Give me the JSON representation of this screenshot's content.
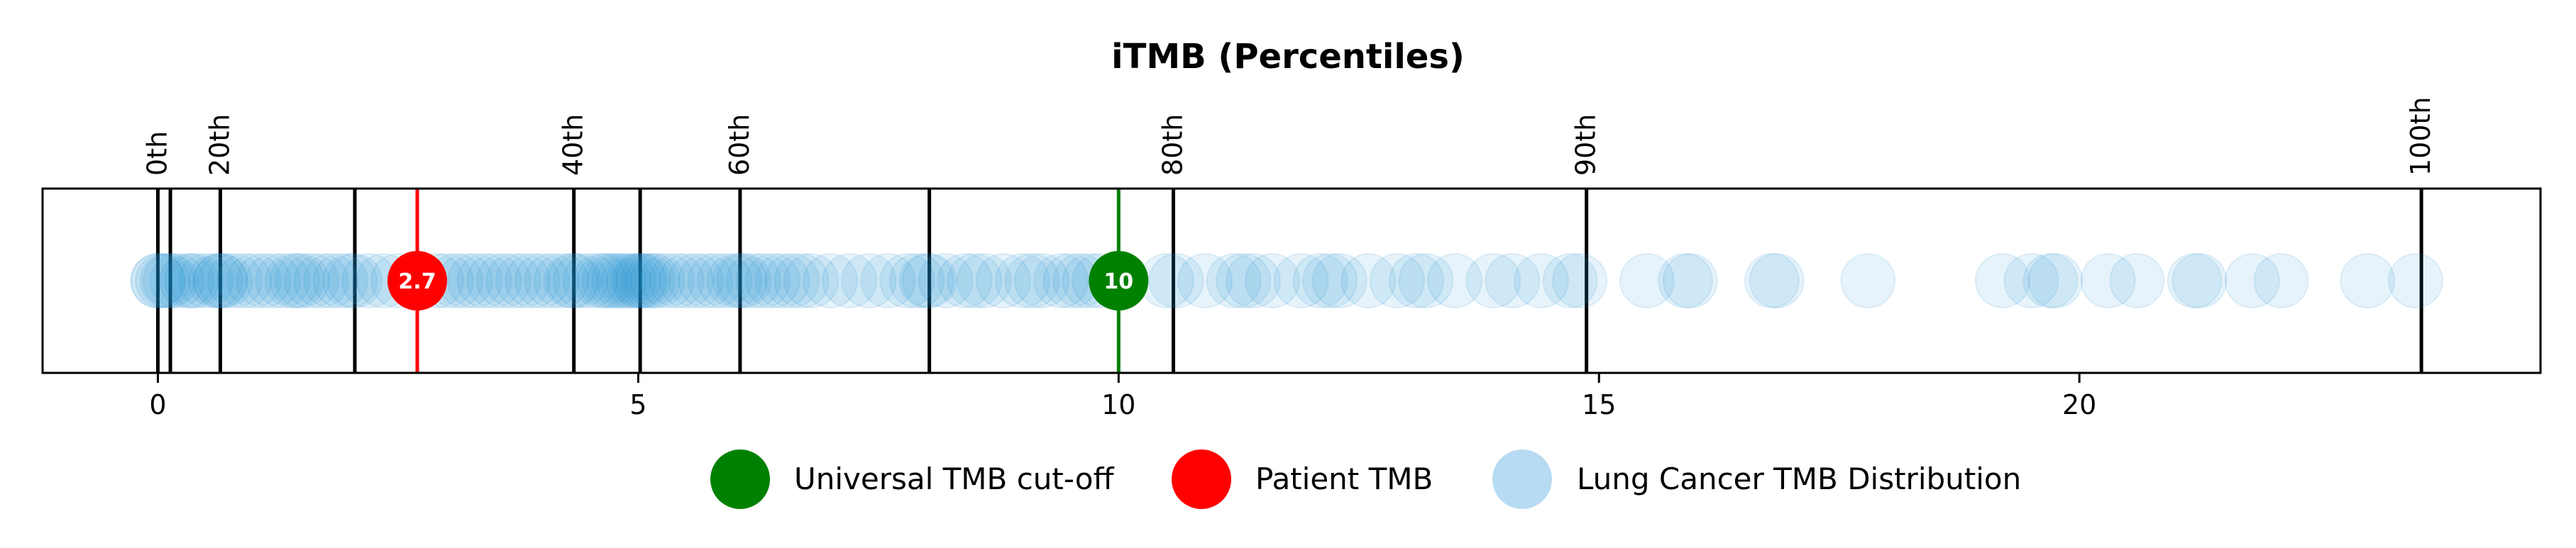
{
  "chart_data": {
    "type": "scatter",
    "title": "iTMB (Percentiles)",
    "xlabel": "",
    "ylabel": "",
    "xlim": [
      -1.2,
      24.8
    ],
    "xticks": [
      0,
      5,
      10,
      15,
      20
    ],
    "grid": false,
    "legend_placement": "bottom-center",
    "percentile_lines": [
      {
        "value": 0,
        "label": "0th"
      },
      {
        "value": 0.13,
        "label": ""
      },
      {
        "value": 0.65,
        "label": "20th"
      },
      {
        "value": 2.05,
        "label": ""
      },
      {
        "value": 4.33,
        "label": "40th"
      },
      {
        "value": 5.02,
        "label": ""
      },
      {
        "value": 6.06,
        "label": "60th"
      },
      {
        "value": 8.03,
        "label": ""
      },
      {
        "value": 10.57,
        "label": "80th"
      },
      {
        "value": 14.87,
        "label": "90th"
      },
      {
        "value": 23.56,
        "label": "100th"
      }
    ],
    "series": [
      {
        "name": "Lung Cancer TMB Distribution",
        "color": "#1f8ed6",
        "values": [
          0,
          0,
          0.05,
          0.1,
          0.13,
          0.2,
          0.3,
          0.35,
          0.4,
          0.5,
          0.6,
          0.65,
          0.65,
          0.7,
          0.8,
          0.9,
          1.0,
          1.1,
          1.2,
          1.3,
          1.4,
          1.45,
          1.5,
          1.6,
          1.7,
          1.8,
          1.9,
          2.0,
          2.05,
          2.2,
          2.35,
          2.5,
          2.9,
          3.0,
          3.1,
          3.2,
          3.3,
          3.4,
          3.5,
          3.6,
          3.7,
          3.8,
          3.9,
          4.0,
          4.1,
          4.2,
          4.3,
          4.33,
          4.4,
          4.5,
          4.6,
          4.65,
          4.7,
          4.75,
          4.8,
          4.85,
          4.9,
          4.95,
          5.0,
          5.02,
          5.05,
          5.1,
          5.15,
          5.2,
          5.3,
          5.4,
          5.5,
          5.6,
          5.7,
          5.8,
          5.9,
          6.0,
          6.06,
          6.1,
          6.2,
          6.3,
          6.4,
          6.5,
          6.6,
          6.7,
          6.8,
          7.0,
          7.2,
          7.4,
          7.6,
          7.8,
          7.9,
          8.0,
          8.03,
          8.2,
          8.4,
          8.5,
          8.6,
          8.8,
          9.0,
          9.1,
          9.2,
          9.4,
          9.5,
          9.6,
          9.7,
          9.8,
          10.5,
          10.6,
          10.9,
          11.2,
          11.3,
          11.4,
          11.6,
          11.9,
          12.1,
          12.2,
          12.3,
          12.6,
          12.9,
          13.1,
          13.2,
          13.5,
          13.9,
          14.1,
          14.4,
          14.7,
          14.8,
          15.5,
          15.9,
          15.95,
          16.8,
          16.85,
          17.8,
          19.2,
          19.5,
          19.7,
          19.75,
          20.3,
          20.6,
          21.2,
          21.25,
          21.8,
          22.1,
          23.0,
          23.5
        ]
      },
      {
        "name": "Universal TMB cut-off",
        "color": "#008000",
        "value": 10,
        "label": "10"
      },
      {
        "name": "Patient TMB",
        "color": "#ff0000",
        "value": 2.7,
        "label": "2.7"
      }
    ]
  }
}
